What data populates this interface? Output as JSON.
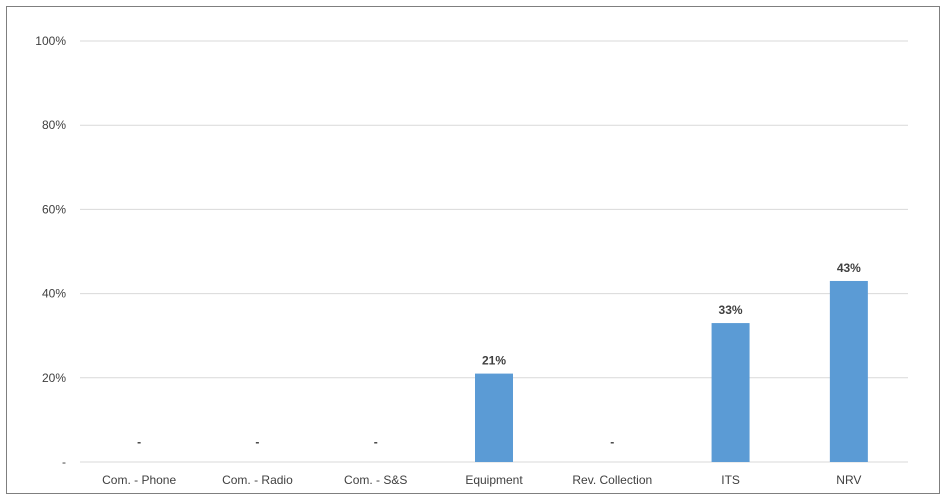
{
  "chart_data": {
    "type": "bar",
    "categories": [
      "Com. - Phone",
      "Com. - Radio",
      "Com. - S&S",
      "Equipment",
      "Rev. Collection",
      "ITS",
      "NRV"
    ],
    "series": [
      {
        "values": [
          0,
          0,
          0,
          21,
          0,
          33,
          43
        ]
      }
    ],
    "data_labels": [
      "-",
      "-",
      "-",
      "21%",
      "-",
      "33%",
      "43%"
    ],
    "yticks": [
      0,
      20,
      40,
      60,
      80,
      100
    ],
    "ytick_labels": [
      "-",
      "20%",
      "40%",
      "60%",
      "80%",
      "100%"
    ],
    "ylim": [
      0,
      100
    ],
    "grid": true,
    "legend": "none",
    "bar_color": "#5b9bd5",
    "grid_color": "#d9d9d9"
  }
}
